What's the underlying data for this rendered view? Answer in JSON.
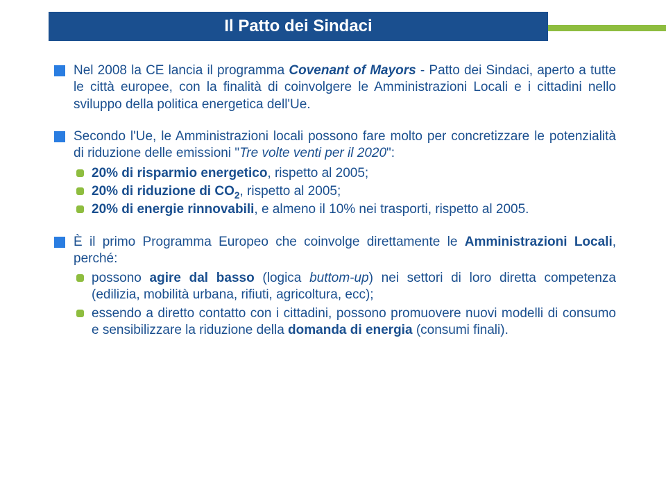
{
  "colors": {
    "title_bg": "#1a4f8f",
    "title_color": "#ffffff",
    "accent_green": "#8ebd3f",
    "body_color": "#1a4f8f",
    "square_blue": "#2a7de1",
    "dot_green": "#8ebd3f"
  },
  "title": "Il Patto dei Sindaci",
  "p1": {
    "pre": "Nel 2008 la CE lancia il programma ",
    "em1": "Covenant of Mayors",
    "mid": " - Patto dei Sindaci, aperto a tutte le città europee, con la finalità di coinvolgere le Amministrazioni Locali e i cittadini nello sviluppo della politica energetica dell'Ue."
  },
  "p2": {
    "intro_a": "Secondo l'Ue, le Amministrazioni locali possono fare molto per concretizzare le potenzialità di riduzione delle emissioni \"",
    "intro_em": "Tre volte venti per il 2020",
    "intro_b": "\":",
    "sub1": {
      "b": "20% di risparmio energetico",
      "rest": ", rispetto al 2005;"
    },
    "sub2": {
      "b1": "20%  di riduzione di CO",
      "b2": "2",
      "rest": ", rispetto al 2005;"
    },
    "sub3": {
      "b": "20% di energie rinnovabili",
      "rest": ", e almeno il 10% nei trasporti, rispetto al 2005."
    }
  },
  "p3": {
    "intro_a": "È il primo Programma Europeo che coinvolge direttamente le ",
    "intro_b": "Amministrazioni Locali",
    "intro_c": ", perché:",
    "sub1": {
      "a": "possono ",
      "b": "agire dal basso",
      "c": " (logica ",
      "d": "buttom-up",
      "e": ") nei settori di loro diretta competenza (edilizia, mobilità urbana, rifiuti, agricoltura, ecc);"
    },
    "sub2": {
      "a": "essendo a diretto contatto con i cittadini, possono promuovere nuovi modelli di consumo e sensibilizzare la riduzione della ",
      "b": "domanda di energia ",
      "c": "(consumi finali)."
    }
  }
}
